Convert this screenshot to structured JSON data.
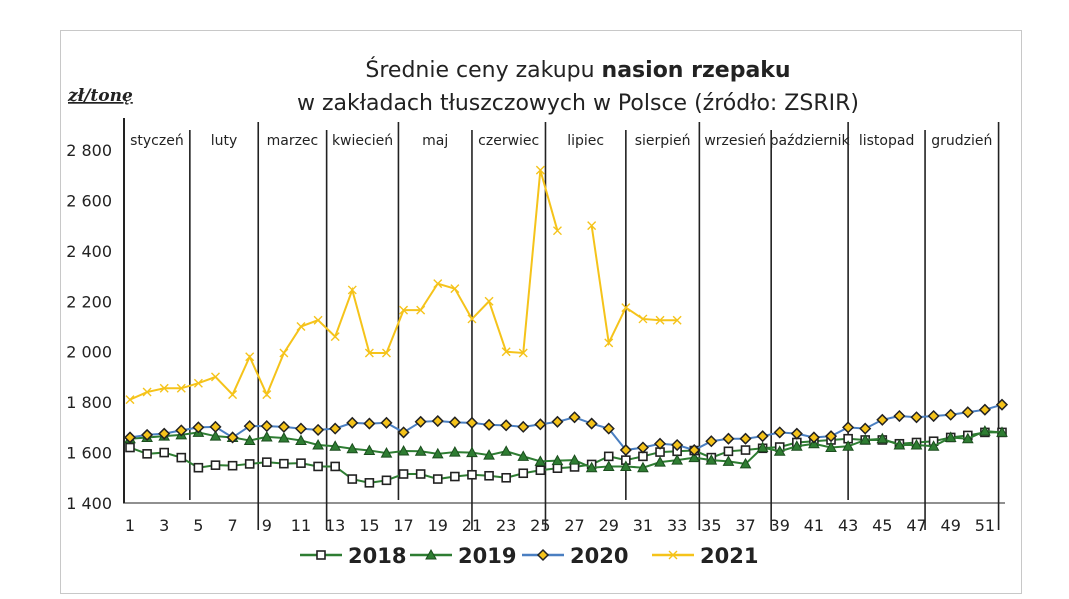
{
  "chart_data": {
    "type": "line",
    "title_line1_pre": "Średnie ceny zakupu ",
    "title_line1_bold": "nasion rzepaku",
    "title_line2": "w zakładach tłuszczowych w Polsce  (źródło: ZSRIR)",
    "ylabel": "zł/tonę",
    "ylim": [
      1400,
      2800
    ],
    "yticks": [
      "1 400",
      "1 600",
      "1 800",
      "2 000",
      "2 200",
      "2 400",
      "2 600",
      "2 800"
    ],
    "ytick_values": [
      1400,
      1600,
      1800,
      2000,
      2200,
      2400,
      2600,
      2800
    ],
    "xlim": [
      1,
      52
    ],
    "xticks": [
      "1",
      "3",
      "5",
      "7",
      "9",
      "11",
      "13",
      "15",
      "17",
      "19",
      "21",
      "23",
      "25",
      "27",
      "29",
      "31",
      "33",
      "35",
      "37",
      "39",
      "41",
      "43",
      "45",
      "47",
      "49",
      "51"
    ],
    "months": [
      {
        "label": "styczeń",
        "start": 1
      },
      {
        "label": "luty",
        "start": 5
      },
      {
        "label": "marzec",
        "start": 9
      },
      {
        "label": "kwiecień",
        "start": 13
      },
      {
        "label": "maj",
        "start": 18
      },
      {
        "label": "czerwiec",
        "start": 22
      },
      {
        "label": "lipiec",
        "start": 26
      },
      {
        "label": "sierpień",
        "start": 31
      },
      {
        "label": "wrzesień",
        "start": 35
      },
      {
        "label": "październik",
        "start": 40
      },
      {
        "label": "listopad",
        "start": 44
      },
      {
        "label": "grudzień",
        "start": 48
      }
    ],
    "month_boundaries": [
      4.5,
      8.5,
      12.5,
      16.7,
      21.0,
      25.3,
      30.0,
      34.3,
      38.5,
      43.0,
      47.5,
      51.8
    ],
    "series": [
      {
        "name": "2018",
        "color": "#2e7d32",
        "marker": "square",
        "values": [
          1620,
          1595,
          1600,
          1580,
          1540,
          1550,
          1548,
          1555,
          1562,
          1556,
          1558,
          1545,
          1545,
          1495,
          1480,
          1490,
          1515,
          1515,
          1495,
          1505,
          1512,
          1508,
          1500,
          1518,
          1530,
          1538,
          1543,
          1553,
          1585,
          1570,
          1585,
          1602,
          1605,
          1608,
          1580,
          1605,
          1610,
          1617,
          1622,
          1640,
          1645,
          1650,
          1655,
          1650,
          1650,
          1635,
          1640,
          1645,
          1660,
          1668,
          1680,
          1680
        ]
      },
      {
        "name": "2019",
        "color": "#2e7d32",
        "marker": "triangle",
        "values": [
          1655,
          1660,
          1665,
          1670,
          1680,
          1665,
          1660,
          1648,
          1662,
          1658,
          1648,
          1630,
          1625,
          1615,
          1608,
          1598,
          1606,
          1605,
          1595,
          1602,
          1600,
          1590,
          1605,
          1585,
          1565,
          1568,
          1570,
          1540,
          1545,
          1545,
          1540,
          1562,
          1570,
          1580,
          1570,
          1565,
          1555,
          1620,
          1605,
          1625,
          1635,
          1620,
          1625,
          1650,
          1655,
          1630,
          1630,
          1625,
          1660,
          1655,
          1685,
          1680
        ]
      },
      {
        "name": "2020",
        "color": "#4a7fc1",
        "marker": "diamond",
        "values": [
          1660,
          1670,
          1675,
          1688,
          1700,
          1702,
          1660,
          1705,
          1705,
          1702,
          1695,
          1690,
          1695,
          1718,
          1715,
          1718,
          1680,
          1722,
          1725,
          1720,
          1718,
          1710,
          1708,
          1702,
          1712,
          1722,
          1740,
          1715,
          1695,
          1610,
          1620,
          1635,
          1630,
          1610,
          1645,
          1655,
          1655,
          1665,
          1680,
          1675,
          1660,
          1665,
          1700,
          1695,
          1730,
          1745,
          1740,
          1745,
          1750,
          1760,
          1770,
          1790
        ]
      },
      {
        "name": "2021",
        "color": "#f5c31a",
        "marker": "cross",
        "values": [
          1810,
          1840,
          1855,
          1855,
          1875,
          1900,
          1830,
          1980,
          1830,
          1995,
          2100,
          2125,
          2060,
          2245,
          1995,
          1995,
          2165,
          2165,
          2270,
          2250,
          2130,
          2200,
          2000,
          1995,
          2720,
          2480,
          null,
          2500,
          2035,
          2175,
          2130,
          2125,
          2125,
          null,
          null,
          null,
          null,
          null,
          null,
          null,
          null,
          null,
          null,
          null,
          null,
          null,
          null,
          null,
          null,
          null,
          null,
          null
        ]
      }
    ],
    "legend_position": "bottom",
    "grid": false
  }
}
